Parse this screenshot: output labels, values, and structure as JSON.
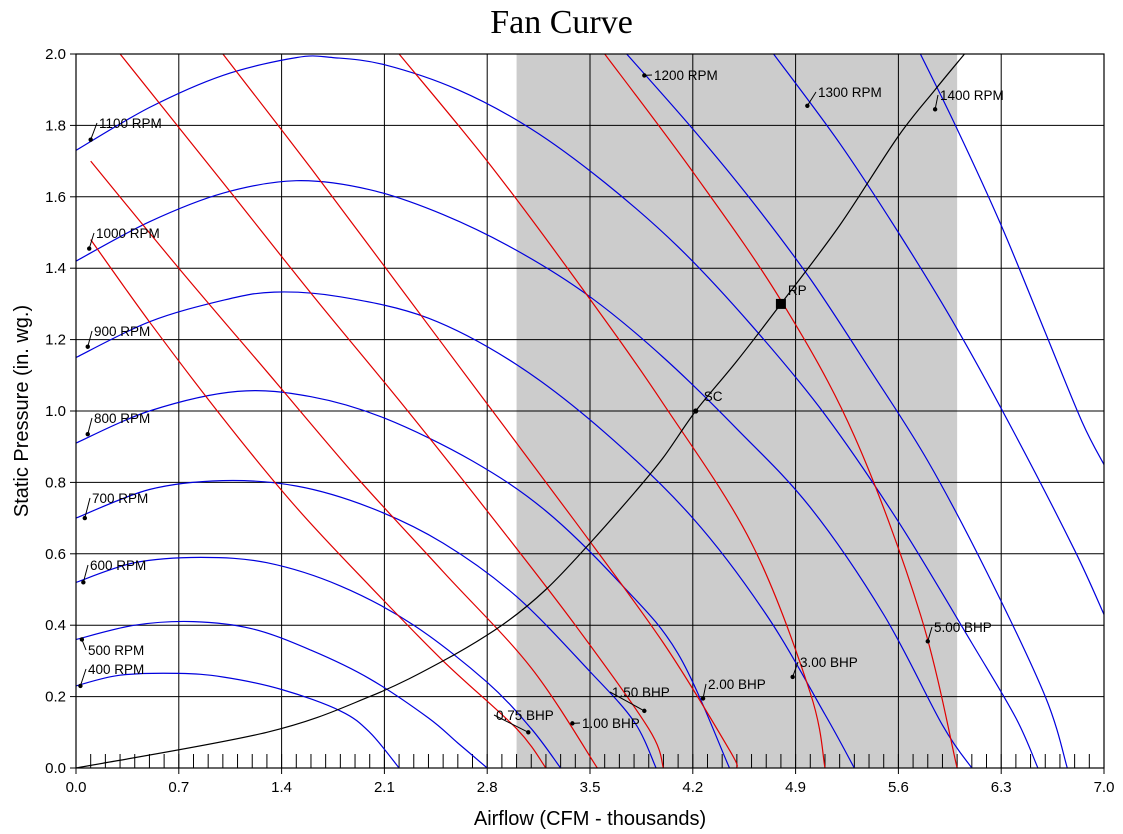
{
  "chart_data": {
    "type": "line",
    "title": "Fan Curve",
    "xlabel": "Airflow (CFM - thousands)",
    "ylabel": "Static Pressure (in. wg.)",
    "xlim": [
      0,
      7
    ],
    "ylim": [
      0,
      2
    ],
    "x_ticks": [
      "0.0",
      "0.7",
      "1.4",
      "2.1",
      "2.8",
      "3.5",
      "4.2",
      "4.9",
      "5.6",
      "6.3",
      "7.0"
    ],
    "y_ticks": [
      "0.0",
      "0.2",
      "0.4",
      "0.6",
      "0.8",
      "1.0",
      "1.2",
      "1.4",
      "1.6",
      "1.8",
      "2.0"
    ],
    "grid": true,
    "shaded_region": {
      "x": [
        3.0,
        6.0
      ]
    },
    "colors": {
      "rpm": "#0000dd",
      "bhp": "#e00000",
      "system": "#000000",
      "shade": "#cccccc"
    },
    "rpm_curves": [
      {
        "label": "400 RPM",
        "points": [
          [
            0,
            0.23
          ],
          [
            0.3,
            0.26
          ],
          [
            0.7,
            0.265
          ],
          [
            1.0,
            0.255
          ],
          [
            1.4,
            0.22
          ],
          [
            1.8,
            0.16
          ],
          [
            2.0,
            0.1
          ],
          [
            2.2,
            0.0
          ]
        ]
      },
      {
        "label": "500 RPM",
        "points": [
          [
            0,
            0.36
          ],
          [
            0.4,
            0.4
          ],
          [
            0.8,
            0.41
          ],
          [
            1.2,
            0.39
          ],
          [
            1.6,
            0.33
          ],
          [
            2.0,
            0.25
          ],
          [
            2.4,
            0.14
          ],
          [
            2.6,
            0.07
          ],
          [
            2.8,
            0.0
          ]
        ]
      },
      {
        "label": "600 RPM",
        "points": [
          [
            0,
            0.52
          ],
          [
            0.4,
            0.575
          ],
          [
            0.85,
            0.59
          ],
          [
            1.3,
            0.575
          ],
          [
            1.8,
            0.51
          ],
          [
            2.3,
            0.4
          ],
          [
            2.8,
            0.24
          ],
          [
            3.1,
            0.11
          ],
          [
            3.3,
            0.0
          ]
        ]
      },
      {
        "label": "700 RPM",
        "points": [
          [
            0,
            0.7
          ],
          [
            0.5,
            0.78
          ],
          [
            1.0,
            0.805
          ],
          [
            1.5,
            0.79
          ],
          [
            2.0,
            0.73
          ],
          [
            2.5,
            0.63
          ],
          [
            3.0,
            0.48
          ],
          [
            3.5,
            0.27
          ],
          [
            3.8,
            0.13
          ],
          [
            3.95,
            0.0
          ]
        ]
      },
      {
        "label": "800 RPM",
        "points": [
          [
            0,
            0.91
          ],
          [
            0.5,
            1.0
          ],
          [
            1.1,
            1.055
          ],
          [
            1.6,
            1.04
          ],
          [
            2.1,
            0.98
          ],
          [
            2.7,
            0.86
          ],
          [
            3.2,
            0.72
          ],
          [
            3.7,
            0.52
          ],
          [
            4.1,
            0.32
          ],
          [
            4.45,
            0.0
          ]
        ]
      },
      {
        "label": "900 RPM",
        "points": [
          [
            0,
            1.15
          ],
          [
            0.5,
            1.25
          ],
          [
            1.0,
            1.31
          ],
          [
            1.35,
            1.333
          ],
          [
            1.8,
            1.32
          ],
          [
            2.4,
            1.26
          ],
          [
            3.0,
            1.13
          ],
          [
            3.6,
            0.94
          ],
          [
            4.2,
            0.7
          ],
          [
            4.7,
            0.43
          ],
          [
            5.1,
            0.15
          ],
          [
            5.3,
            0.0
          ]
        ]
      },
      {
        "label": "1000 RPM",
        "points": [
          [
            0,
            1.42
          ],
          [
            0.5,
            1.53
          ],
          [
            1.0,
            1.61
          ],
          [
            1.5,
            1.645
          ],
          [
            2.0,
            1.62
          ],
          [
            2.5,
            1.55
          ],
          [
            3.0,
            1.45
          ],
          [
            3.5,
            1.32
          ],
          [
            4.0,
            1.15
          ],
          [
            4.5,
            0.95
          ],
          [
            5.0,
            0.73
          ],
          [
            5.5,
            0.43
          ],
          [
            5.9,
            0.12
          ],
          [
            6.1,
            0.0
          ]
        ]
      },
      {
        "label": "1100 RPM",
        "points": [
          [
            0,
            1.73
          ],
          [
            0.5,
            1.85
          ],
          [
            1.0,
            1.94
          ],
          [
            1.5,
            1.99
          ],
          [
            1.75,
            1.99
          ],
          [
            2.1,
            1.97
          ],
          [
            2.6,
            1.9
          ],
          [
            3.1,
            1.79
          ],
          [
            3.6,
            1.64
          ],
          [
            4.1,
            1.46
          ],
          [
            4.6,
            1.24
          ],
          [
            5.1,
            0.99
          ],
          [
            5.6,
            0.69
          ],
          [
            6.1,
            0.35
          ],
          [
            6.4,
            0.14
          ],
          [
            6.55,
            0.0
          ]
        ]
      },
      {
        "label": "1200 RPM",
        "points": [
          [
            3.75,
            2.0
          ],
          [
            4.2,
            1.79
          ],
          [
            4.6,
            1.59
          ],
          [
            5.0,
            1.37
          ],
          [
            5.4,
            1.12
          ],
          [
            5.8,
            0.86
          ],
          [
            6.2,
            0.55
          ],
          [
            6.6,
            0.2
          ],
          [
            6.75,
            0.0
          ]
        ]
      },
      {
        "label": "1300 RPM",
        "points": [
          [
            4.75,
            2.0
          ],
          [
            5.2,
            1.75
          ],
          [
            5.6,
            1.5
          ],
          [
            6.0,
            1.23
          ],
          [
            6.4,
            0.93
          ],
          [
            6.8,
            0.61
          ],
          [
            7.0,
            0.43
          ]
        ]
      },
      {
        "label": "1400 RPM",
        "points": [
          [
            5.75,
            2.0
          ],
          [
            6.0,
            1.79
          ],
          [
            6.3,
            1.52
          ],
          [
            6.6,
            1.22
          ],
          [
            6.85,
            0.97
          ],
          [
            7.0,
            0.85
          ]
        ]
      }
    ],
    "bhp_curves": [
      {
        "label": "0.75 BHP",
        "points": [
          [
            0.1,
            1.48
          ],
          [
            0.5,
            1.25
          ],
          [
            1.0,
            0.98
          ],
          [
            1.5,
            0.73
          ],
          [
            2.0,
            0.51
          ],
          [
            2.5,
            0.3
          ],
          [
            3.0,
            0.11
          ],
          [
            3.2,
            0.0
          ]
        ]
      },
      {
        "label": "1.00 BHP",
        "points": [
          [
            0.1,
            1.7
          ],
          [
            0.7,
            1.4
          ],
          [
            1.3,
            1.11
          ],
          [
            1.9,
            0.82
          ],
          [
            2.5,
            0.55
          ],
          [
            3.1,
            0.28
          ],
          [
            3.55,
            0.0
          ]
        ]
      },
      {
        "label": "1.50 BHP",
        "points": [
          [
            0.3,
            2.0
          ],
          [
            1.0,
            1.64
          ],
          [
            1.6,
            1.33
          ],
          [
            2.2,
            1.03
          ],
          [
            2.8,
            0.72
          ],
          [
            3.4,
            0.4
          ],
          [
            3.9,
            0.11
          ],
          [
            4.0,
            0.0
          ]
        ]
      },
      {
        "label": "2.00 BHP",
        "points": [
          [
            1.0,
            2.0
          ],
          [
            1.6,
            1.68
          ],
          [
            2.2,
            1.35
          ],
          [
            2.8,
            1.02
          ],
          [
            3.4,
            0.69
          ],
          [
            4.0,
            0.35
          ],
          [
            4.45,
            0.05
          ],
          [
            4.5,
            0.0
          ]
        ]
      },
      {
        "label": "3.00 BHP",
        "points": [
          [
            2.2,
            2.0
          ],
          [
            2.8,
            1.7
          ],
          [
            3.4,
            1.37
          ],
          [
            4.0,
            1.02
          ],
          [
            4.6,
            0.63
          ],
          [
            5.0,
            0.21
          ],
          [
            5.1,
            0.0
          ]
        ]
      },
      {
        "label": "5.00 BHP",
        "points": [
          [
            3.6,
            2.0
          ],
          [
            4.2,
            1.67
          ],
          [
            4.8,
            1.31
          ],
          [
            5.3,
            0.93
          ],
          [
            5.75,
            0.43
          ],
          [
            6.0,
            0.0
          ]
        ]
      }
    ],
    "system_curve": {
      "points": [
        [
          0,
          0.0
        ],
        [
          1.3,
          0.1
        ],
        [
          2.0,
          0.2
        ],
        [
          2.5,
          0.3
        ],
        [
          2.9,
          0.4
        ],
        [
          3.2,
          0.5
        ],
        [
          3.5,
          0.63
        ],
        [
          3.8,
          0.77
        ],
        [
          4.0,
          0.87
        ],
        [
          4.22,
          1.0
        ],
        [
          4.5,
          1.14
        ],
        [
          4.8,
          1.3
        ],
        [
          5.2,
          1.52
        ],
        [
          5.6,
          1.77
        ],
        [
          5.85,
          1.9
        ],
        [
          6.05,
          2.0
        ]
      ]
    },
    "points": [
      {
        "label": "SC",
        "x": 4.22,
        "y": 1.0
      },
      {
        "label": "RP",
        "x": 4.8,
        "y": 1.3
      }
    ]
  }
}
